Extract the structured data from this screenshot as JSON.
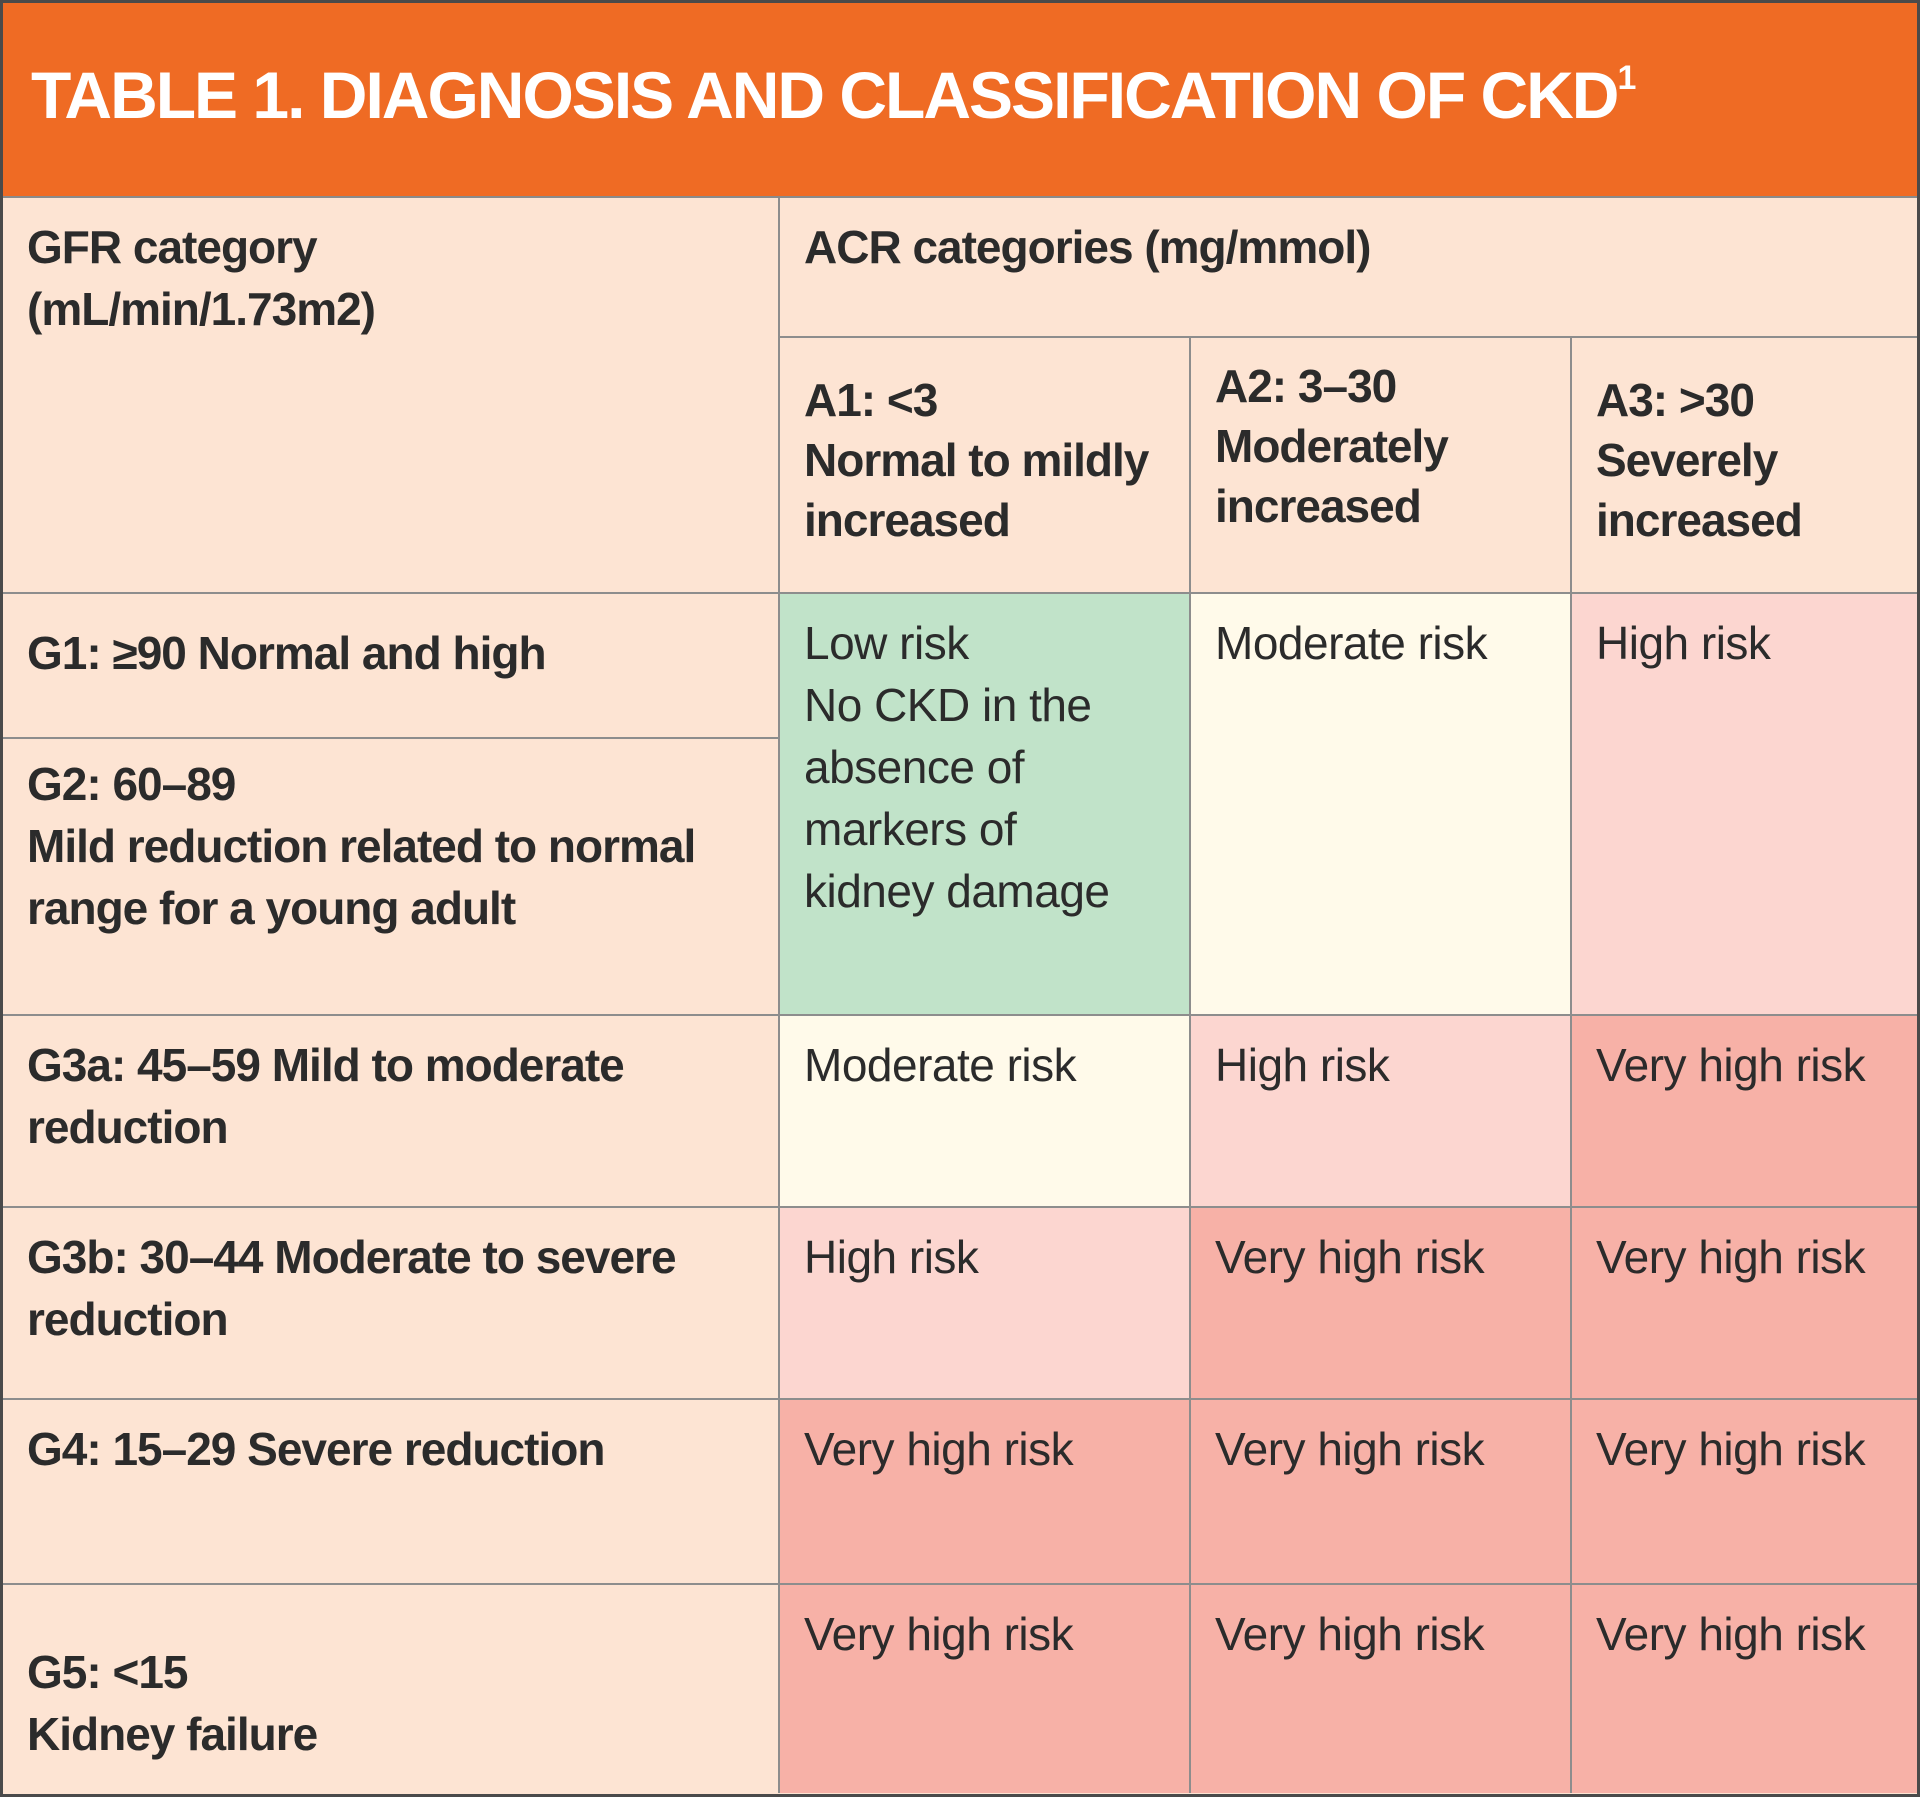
{
  "title": "TABLE 1. DIAGNOSIS AND CLASSIFICATION OF CKD",
  "title_footnote": "1",
  "header": {
    "gfr_label_line1": "GFR category",
    "gfr_label_line2": "(mL/min/1.73m2)",
    "acr_label": "ACR categories (mg/mmol)",
    "acr_columns": [
      {
        "code": "A1: <3",
        "desc_line1": "Normal to mildly",
        "desc_line2": "increased"
      },
      {
        "code": "A2: 3–30",
        "desc_line1": "Moderately",
        "desc_line2": "increased"
      },
      {
        "code": "A3: >30",
        "desc_line1": "Severely",
        "desc_line2": "increased"
      }
    ]
  },
  "rows": [
    {
      "gfr": "G1: ≥90 Normal and high"
    },
    {
      "gfr_line1": "G2: 60–89",
      "gfr_line2": "Mild reduction related to normal",
      "gfr_line3": "range for a young adult"
    },
    {
      "gfr_line1": "G3a: 45–59 Mild to moderate",
      "gfr_line2": "reduction"
    },
    {
      "gfr_line1": "G3b: 30–44 Moderate to severe",
      "gfr_line2": "reduction"
    },
    {
      "gfr": "G4: 15–29 Severe reduction"
    },
    {
      "gfr_line1": "G5: <15",
      "gfr_line2": "Kidney failure"
    }
  ],
  "risk": {
    "low_line1": "Low risk",
    "low_line2": "No CKD in the",
    "low_line3": "absence of",
    "low_line4": "markers of",
    "low_line5": "kidney damage",
    "g12_a2": "Moderate risk",
    "g12_a3": "High risk",
    "g3a": [
      "Moderate risk",
      "High risk",
      "Very high risk"
    ],
    "g3b": [
      "High risk",
      "Very high risk",
      "Very high risk"
    ],
    "g4": [
      "Very high risk",
      "Very high risk",
      "Very high risk"
    ],
    "g5": [
      "Very high risk",
      "Very high risk",
      "Very high risk"
    ]
  },
  "colors": {
    "title_bar": "#ef6b24",
    "header_bg": "#fde4d3",
    "low_risk": "#c1e3c9",
    "moderate_risk": "#fffaea",
    "high_risk": "#fcd6d0",
    "very_high_risk": "#f7b1a7"
  }
}
